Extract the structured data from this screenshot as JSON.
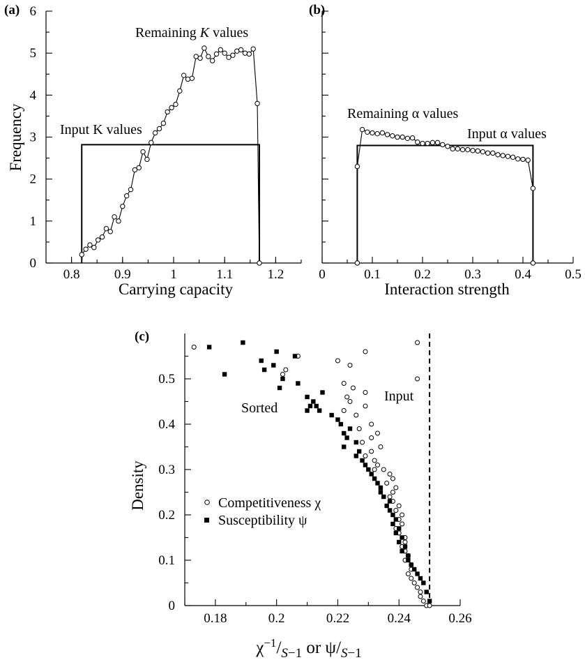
{
  "chart_data": [
    {
      "panel": "(a)",
      "type": "line",
      "xlabel": "Carrying capacity",
      "ylabel": "Frequency",
      "xlim": [
        0.75,
        1.25
      ],
      "ylim": [
        0,
        6
      ],
      "xticks_labeled": [
        "0.8",
        "0.9",
        "1",
        "1.1",
        "1.2"
      ],
      "yticks_labeled": [
        "0",
        "1",
        "2",
        "3",
        "4",
        "5",
        "6"
      ],
      "annotations": [
        "Remaining K values",
        "Input K values"
      ],
      "series": [
        {
          "name": "Remaining K values",
          "style": "line-open-circles",
          "x": [
            0.82,
            0.828,
            0.836,
            0.844,
            0.852,
            0.86,
            0.868,
            0.876,
            0.884,
            0.892,
            0.9,
            0.908,
            0.916,
            0.924,
            0.932,
            0.94,
            0.948,
            0.956,
            0.964,
            0.972,
            0.98,
            0.988,
            0.996,
            1.004,
            1.012,
            1.02,
            1.028,
            1.036,
            1.044,
            1.052,
            1.06,
            1.068,
            1.076,
            1.084,
            1.092,
            1.1,
            1.108,
            1.116,
            1.124,
            1.132,
            1.14,
            1.148,
            1.156,
            1.164,
            1.168
          ],
          "y": [
            0.2,
            0.33,
            0.43,
            0.37,
            0.55,
            0.62,
            0.82,
            0.75,
            1.1,
            1.0,
            1.35,
            1.6,
            1.75,
            2.22,
            2.27,
            2.65,
            2.47,
            2.87,
            3.1,
            3.2,
            3.33,
            3.6,
            3.7,
            3.78,
            4.1,
            4.47,
            4.38,
            4.4,
            4.92,
            4.88,
            5.12,
            4.92,
            4.82,
            4.98,
            5.08,
            5.0,
            4.9,
            4.95,
            5.05,
            5.08,
            5.0,
            4.98,
            5.1,
            3.8,
            0.0
          ]
        },
        {
          "name": "Input K values",
          "style": "line",
          "x": [
            0.82,
            0.82,
            1.168,
            1.168
          ],
          "y": [
            0,
            2.82,
            2.82,
            0
          ]
        }
      ]
    },
    {
      "panel": "(b)",
      "type": "line",
      "xlabel": "Interaction strength",
      "ylabel": "",
      "xlim": [
        0,
        0.5
      ],
      "ylim": [
        0,
        6
      ],
      "xticks_labeled": [
        "0",
        "0.1",
        "0.2",
        "0.3",
        "0.4",
        "0.5"
      ],
      "annotations": [
        "Remaining α values",
        "Input α values"
      ],
      "series": [
        {
          "name": "Remaining α values",
          "style": "line-open-circles",
          "x": [
            0.07,
            0.07,
            0.08,
            0.09,
            0.1,
            0.11,
            0.12,
            0.13,
            0.14,
            0.15,
            0.16,
            0.17,
            0.18,
            0.19,
            0.2,
            0.21,
            0.22,
            0.23,
            0.24,
            0.25,
            0.26,
            0.27,
            0.28,
            0.29,
            0.3,
            0.31,
            0.32,
            0.33,
            0.34,
            0.35,
            0.36,
            0.37,
            0.38,
            0.39,
            0.4,
            0.41,
            0.42,
            0.42
          ],
          "y": [
            0,
            2.3,
            3.18,
            3.12,
            3.1,
            3.08,
            3.1,
            3.06,
            3.03,
            3.0,
            3.0,
            2.97,
            2.98,
            2.88,
            2.85,
            2.85,
            2.87,
            2.87,
            2.82,
            2.78,
            2.72,
            2.72,
            2.7,
            2.7,
            2.68,
            2.67,
            2.65,
            2.62,
            2.62,
            2.58,
            2.56,
            2.54,
            2.52,
            2.48,
            2.47,
            2.45,
            1.78,
            0
          ]
        },
        {
          "name": "Input α values",
          "style": "line",
          "x": [
            0.07,
            0.07,
            0.42,
            0.42
          ],
          "y": [
            0,
            2.8,
            2.8,
            0
          ]
        }
      ]
    },
    {
      "panel": "(c)",
      "type": "scatter",
      "xlabel": "χ−1/S−1 or ψ/S−1",
      "ylabel": "Density",
      "xlim": [
        0.17,
        0.26
      ],
      "ylim": [
        0,
        0.6
      ],
      "xticks_labeled": [
        "0.18",
        "0.2",
        "0.22",
        "0.24",
        "0.26"
      ],
      "yticks_labeled": [
        "0",
        "0.1",
        "0.2",
        "0.3",
        "0.4",
        "0.5"
      ],
      "annotations": [
        "Sorted",
        "Input"
      ],
      "input_line_x": 0.25,
      "legend_position": "lower-left",
      "series": [
        {
          "name": "Competitiveness χ",
          "marker": "open-circle",
          "x": [
            0.173,
            0.207,
            0.203,
            0.202,
            0.229,
            0.246,
            0.246,
            0.224,
            0.22,
            0.222,
            0.225,
            0.223,
            0.229,
            0.224,
            0.229,
            0.222,
            0.231,
            0.227,
            0.226,
            0.233,
            0.231,
            0.228,
            0.234,
            0.231,
            0.229,
            0.232,
            0.233,
            0.232,
            0.235,
            0.237,
            0.238,
            0.236,
            0.239,
            0.238,
            0.237,
            0.238,
            0.24,
            0.239,
            0.241,
            0.24,
            0.241,
            0.239,
            0.24,
            0.242,
            0.242,
            0.241,
            0.242,
            0.243,
            0.242,
            0.244,
            0.244,
            0.243,
            0.244,
            0.245,
            0.246,
            0.247,
            0.247,
            0.248,
            0.249,
            0.25
          ],
          "y": [
            0.57,
            0.55,
            0.52,
            0.51,
            0.56,
            0.58,
            0.5,
            0.53,
            0.54,
            0.49,
            0.48,
            0.46,
            0.47,
            0.45,
            0.44,
            0.43,
            0.4,
            0.39,
            0.42,
            0.38,
            0.37,
            0.36,
            0.35,
            0.34,
            0.33,
            0.32,
            0.31,
            0.3,
            0.3,
            0.29,
            0.28,
            0.27,
            0.26,
            0.25,
            0.24,
            0.23,
            0.22,
            0.21,
            0.2,
            0.19,
            0.18,
            0.17,
            0.16,
            0.15,
            0.14,
            0.13,
            0.12,
            0.11,
            0.1,
            0.09,
            0.08,
            0.07,
            0.06,
            0.05,
            0.04,
            0.03,
            0.02,
            0.01,
            0.0,
            0.0
          ]
        },
        {
          "name": "Susceptibility ψ",
          "marker": "filled-square",
          "x": [
            0.178,
            0.189,
            0.183,
            0.195,
            0.196,
            0.2,
            0.199,
            0.206,
            0.201,
            0.207,
            0.202,
            0.21,
            0.212,
            0.215,
            0.213,
            0.214,
            0.21,
            0.211,
            0.218,
            0.22,
            0.221,
            0.222,
            0.223,
            0.222,
            0.224,
            0.226,
            0.227,
            0.226,
            0.228,
            0.229,
            0.23,
            0.231,
            0.232,
            0.233,
            0.234,
            0.234,
            0.235,
            0.236,
            0.237,
            0.237,
            0.238,
            0.239,
            0.238,
            0.24,
            0.239,
            0.241,
            0.24,
            0.242,
            0.241,
            0.243,
            0.243,
            0.244,
            0.245,
            0.246,
            0.247,
            0.248,
            0.249,
            0.25
          ],
          "y": [
            0.57,
            0.58,
            0.51,
            0.54,
            0.52,
            0.56,
            0.53,
            0.55,
            0.48,
            0.49,
            0.5,
            0.46,
            0.45,
            0.47,
            0.44,
            0.43,
            0.43,
            0.44,
            0.42,
            0.41,
            0.4,
            0.38,
            0.37,
            0.35,
            0.39,
            0.36,
            0.34,
            0.33,
            0.32,
            0.31,
            0.3,
            0.29,
            0.28,
            0.27,
            0.26,
            0.25,
            0.24,
            0.22,
            0.23,
            0.21,
            0.2,
            0.19,
            0.18,
            0.17,
            0.16,
            0.15,
            0.14,
            0.13,
            0.12,
            0.11,
            0.1,
            0.09,
            0.08,
            0.07,
            0.06,
            0.05,
            0.03,
            0.01
          ]
        }
      ]
    }
  ]
}
